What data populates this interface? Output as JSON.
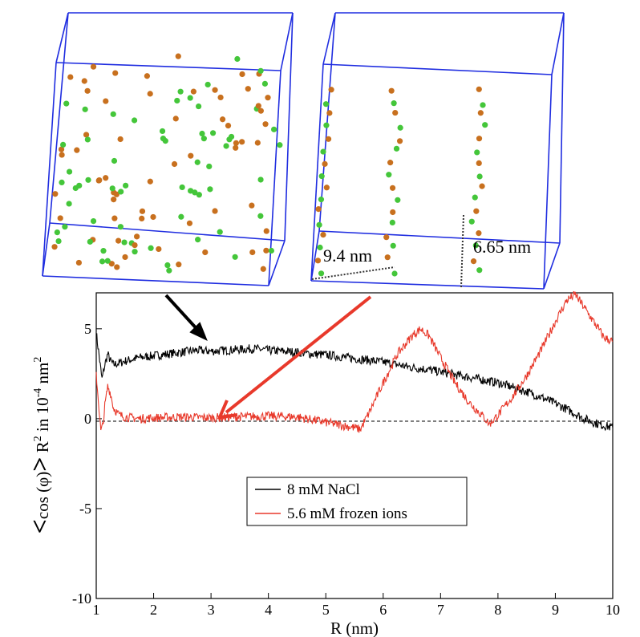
{
  "chart_data": {
    "type": "line",
    "xlabel": "R (nm)",
    "ylabel_parts": {
      "lt": "<",
      "body": "cos (φ)",
      "gt": ">",
      "r": " R",
      "r_exp": "2",
      "in_text": " in 10",
      "exp": "-4",
      "unit": " nm",
      "unit_exp": "2"
    },
    "xlim": [
      1,
      10
    ],
    "ylim": [
      -10,
      7
    ],
    "xticks": [
      "1",
      "2",
      "3",
      "4",
      "5",
      "6",
      "7",
      "8",
      "9",
      "10"
    ],
    "yticks": [
      "-10",
      "-5",
      "0",
      "5"
    ],
    "zero_line": true,
    "legend_position": "lower-center",
    "series": [
      {
        "name": "8 mM NaCl",
        "color": "#000000",
        "x": [
          1.0,
          1.05,
          1.1,
          1.15,
          1.2,
          1.25,
          1.3,
          1.4,
          1.5,
          1.75,
          2.0,
          2.25,
          2.5,
          2.75,
          3.0,
          3.25,
          3.5,
          3.75,
          4.0,
          4.25,
          4.5,
          4.75,
          5.0,
          5.25,
          5.5,
          5.75,
          6.0,
          6.25,
          6.5,
          6.75,
          7.0,
          7.25,
          7.5,
          7.75,
          8.0,
          8.25,
          8.5,
          8.75,
          9.0,
          9.25,
          9.5,
          9.75,
          10.0
        ],
        "y": [
          4.8,
          3.5,
          2.2,
          3.0,
          3.6,
          3.2,
          3.0,
          3.1,
          3.2,
          3.4,
          3.5,
          3.6,
          3.7,
          3.8,
          3.75,
          3.8,
          3.85,
          3.9,
          3.8,
          3.75,
          3.7,
          3.6,
          3.55,
          3.45,
          3.35,
          3.25,
          3.15,
          3.0,
          2.85,
          2.75,
          2.6,
          2.45,
          2.3,
          2.15,
          2.0,
          1.75,
          1.5,
          1.2,
          0.85,
          0.45,
          0.0,
          -0.3,
          -0.5
        ]
      },
      {
        "name": "5.6 mM frozen ions",
        "color": "#e8392b",
        "x": [
          1.0,
          1.05,
          1.08,
          1.12,
          1.15,
          1.2,
          1.25,
          1.3,
          1.4,
          1.5,
          1.75,
          2.0,
          2.5,
          3.0,
          3.5,
          4.0,
          4.5,
          5.0,
          5.25,
          5.5,
          5.6,
          5.75,
          6.0,
          6.25,
          6.5,
          6.65,
          6.8,
          7.0,
          7.25,
          7.5,
          7.75,
          7.85,
          8.0,
          8.25,
          8.5,
          8.75,
          9.0,
          9.2,
          9.35,
          9.5,
          9.75,
          9.85,
          10.0
        ],
        "y": [
          2.5,
          0.5,
          -0.7,
          -0.3,
          0.7,
          1.8,
          1.4,
          0.6,
          0.2,
          0.1,
          0.0,
          0.05,
          0.1,
          0.05,
          0.1,
          0.15,
          0.1,
          -0.2,
          -0.35,
          -0.5,
          -0.6,
          0.3,
          2.0,
          3.6,
          4.6,
          5.0,
          4.6,
          3.4,
          2.0,
          0.9,
          0.1,
          -0.3,
          0.2,
          1.2,
          2.4,
          3.8,
          5.4,
          6.6,
          6.9,
          6.2,
          5.0,
          4.5,
          4.3
        ]
      }
    ]
  },
  "annotations": {
    "dist_a": "9.4 nm",
    "dist_b": "6.65 nm"
  },
  "colors": {
    "box": "#1f2de0",
    "ion_orange": "#c8701e",
    "ion_green": "#44c63a",
    "red": "#e8392b"
  }
}
